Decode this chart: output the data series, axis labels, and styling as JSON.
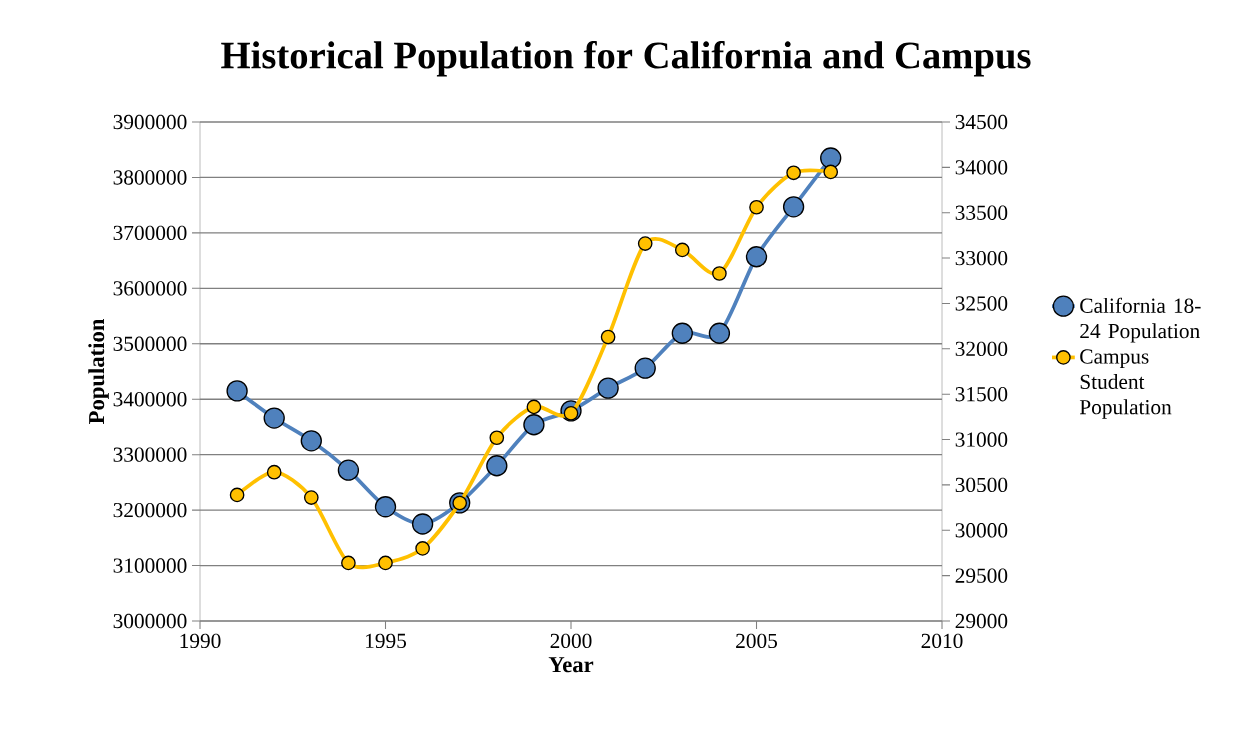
{
  "chart_data": {
    "type": "line",
    "title": "Historical Population for California and Campus",
    "xlabel": "Year",
    "ylabel": "Population",
    "x": [
      1991,
      1992,
      1993,
      1994,
      1995,
      1996,
      1997,
      1998,
      1999,
      2000,
      2001,
      2002,
      2003,
      2004,
      2005,
      2006,
      2007
    ],
    "xlim": [
      1990,
      2010
    ],
    "xticks": [
      1990,
      1995,
      2000,
      2005,
      2010
    ],
    "ylim": [
      3000000,
      3900000
    ],
    "yticks": [
      3000000,
      3100000,
      3200000,
      3300000,
      3400000,
      3500000,
      3600000,
      3700000,
      3800000,
      3900000
    ],
    "y2lim": [
      29000,
      34500
    ],
    "y2ticks": [
      29000,
      29500,
      30000,
      30500,
      31000,
      31500,
      32000,
      32500,
      33000,
      33500,
      34000,
      34500
    ],
    "grid": "y",
    "legend": "right",
    "marker": "circle",
    "line_style": "solid",
    "series": [
      {
        "name": "California 18-24 Population",
        "color": "#4f81bd",
        "values": [
          3415000,
          3366000,
          3325000,
          3272000,
          3206000,
          3175000,
          3213000,
          3280000,
          3354000,
          3379000,
          3420000,
          3456000,
          3519000,
          3519000,
          3657000,
          3747000,
          3835000
        ]
      },
      {
        "name": "Campus Student Population",
        "color": "#ffc000",
        "axis": "y2",
        "values": [
          30390,
          30640,
          30360,
          29640,
          29640,
          29800,
          30300,
          31020,
          31360,
          31290,
          32130,
          33160,
          33090,
          32830,
          33560,
          33940,
          33950
        ]
      }
    ]
  }
}
